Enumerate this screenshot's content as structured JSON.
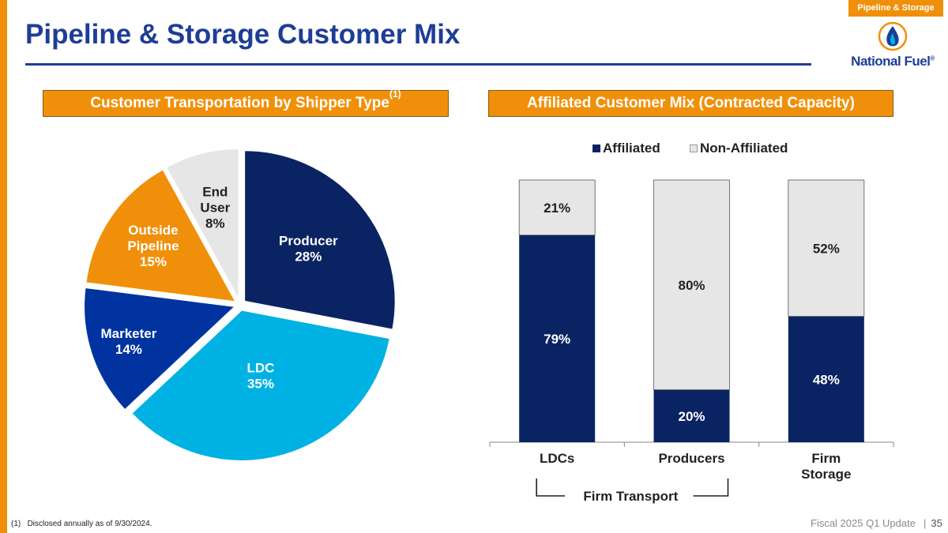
{
  "header": {
    "title": "Pipeline & Storage Customer Mix",
    "section_tag": "Pipeline & Storage",
    "logo_text": "National Fuel",
    "logo_mark": "®"
  },
  "colors": {
    "accent_orange": "#F0900A",
    "brand_blue": "#1E3D96",
    "navy": "#0A2463",
    "royal_blue": "#0033A0",
    "cyan": "#00B2E3",
    "light_gray": "#E6E6E6"
  },
  "panels": {
    "left": {
      "title": "Customer Transportation by Shipper Type",
      "title_sup": "(1)"
    },
    "right": {
      "title": "Affiliated Customer Mix (Contracted Capacity)"
    }
  },
  "chart_data": [
    {
      "type": "pie",
      "title": "Customer Transportation by Shipper Type",
      "labels": [
        "Producer",
        "LDC",
        "Marketer",
        "Outside Pipeline",
        "End User"
      ],
      "values": [
        28,
        35,
        14,
        15,
        8
      ],
      "value_labels": [
        "28%",
        "35%",
        "14%",
        "15%",
        "8%"
      ],
      "colors": [
        "#0A2463",
        "#00B2E3",
        "#0033A0",
        "#F0900A",
        "#E6E6E6"
      ],
      "exploded": true
    },
    {
      "type": "bar",
      "stacked": true,
      "percent": true,
      "title": "Affiliated Customer Mix (Contracted Capacity)",
      "categories": [
        "LDCs",
        "Producers",
        "Firm Storage"
      ],
      "series": [
        {
          "name": "Affiliated",
          "values": [
            79,
            20,
            48
          ],
          "labels": [
            "79%",
            "20%",
            "48%"
          ],
          "color": "#0A2463"
        },
        {
          "name": "Non-Affiliated",
          "values": [
            21,
            80,
            52
          ],
          "labels": [
            "21%",
            "80%",
            "52%"
          ],
          "color": "#E6E6E6"
        }
      ],
      "ylim": [
        0,
        100
      ],
      "legend": "top",
      "bracket_label": "Firm Transport"
    }
  ],
  "footnote": {
    "marker": "(1)",
    "text": "Disclosed annually as of 9/30/2024."
  },
  "footer": {
    "text": "Fiscal 2025 Q1 Update",
    "separator": "|",
    "page": "35"
  }
}
